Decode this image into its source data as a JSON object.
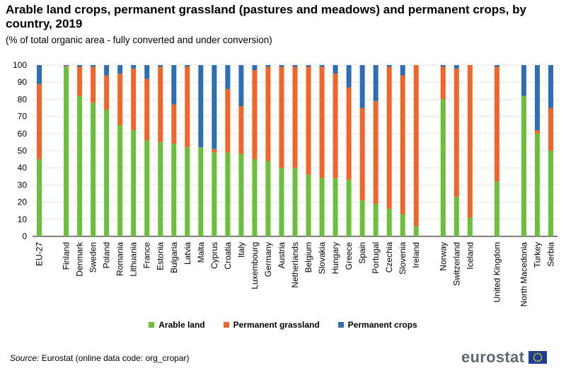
{
  "title": "Arable land crops, permanent grassland (pastures and meadows) and permanent crops, by country, 2019",
  "subtitle": "(% of total organic area - fully converted and under conversion)",
  "source_label": "Source:",
  "source_text": " Eurostat (online data code: org_cropar)",
  "logo_text": "eurostat",
  "colors": {
    "arable": "#6bbf3b",
    "grassland": "#f06529",
    "permanent": "#2e6eb5"
  },
  "chart_data": {
    "type": "bar",
    "stacked": true,
    "title": "Arable land crops, permanent grassland (pastures and meadows) and permanent crops, by country, 2019",
    "subtitle": "(% of total organic area - fully converted and under conversion)",
    "categories": [
      "EU-27",
      "",
      "Finland",
      "Denmark",
      "Sweden",
      "Poland",
      "Romania",
      "Lithuania",
      "France",
      "Estonia",
      "Bulgaria",
      "Latvia",
      "Malta",
      "Cyprus",
      "Croatia",
      "Italy",
      "Luxembourg",
      "Germany",
      "Austria",
      "Netherlands",
      "Belgium",
      "Slovakia",
      "Hungary",
      "Greece",
      "Spain",
      "Portugal",
      "Czechia",
      "Slovenia",
      "Ireland",
      "",
      "Norway",
      "Switzerland",
      "Iceland",
      "",
      "United Kingdom",
      "",
      "North Macedonia",
      "Turkey",
      "Serbia"
    ],
    "series": [
      {
        "name": "Arable land",
        "values": [
          45,
          null,
          99,
          82,
          78,
          74,
          65,
          62,
          56,
          55,
          54,
          52,
          52,
          49,
          49,
          48,
          45,
          44,
          40,
          40,
          36,
          34,
          34,
          33,
          21,
          19,
          16,
          13,
          6,
          null,
          80,
          23,
          11,
          null,
          32,
          null,
          82,
          60,
          50
        ]
      },
      {
        "name": "Permanent grassland",
        "values": [
          44,
          null,
          0.5,
          17,
          21,
          20,
          30,
          36,
          36,
          44,
          23,
          47,
          0,
          2,
          37,
          28,
          52,
          55,
          59,
          59,
          63,
          65,
          61,
          54,
          54,
          60,
          83,
          81,
          94,
          null,
          19,
          75,
          89,
          null,
          67,
          null,
          0,
          2,
          25
        ]
      },
      {
        "name": "Permanent crops",
        "values": [
          11,
          null,
          0.5,
          1,
          1,
          6,
          5,
          2,
          8,
          1,
          23,
          1,
          48,
          49,
          14,
          24,
          3,
          1,
          1,
          1,
          1,
          1,
          5,
          13,
          25,
          21,
          1,
          6,
          0,
          null,
          1,
          2,
          0,
          null,
          1,
          null,
          18,
          38,
          25
        ]
      }
    ],
    "ylim": [
      0,
      100
    ],
    "yticks": [
      0,
      10,
      20,
      30,
      40,
      50,
      60,
      70,
      80,
      90,
      100
    ],
    "grid": true,
    "legend_position": "bottom"
  }
}
